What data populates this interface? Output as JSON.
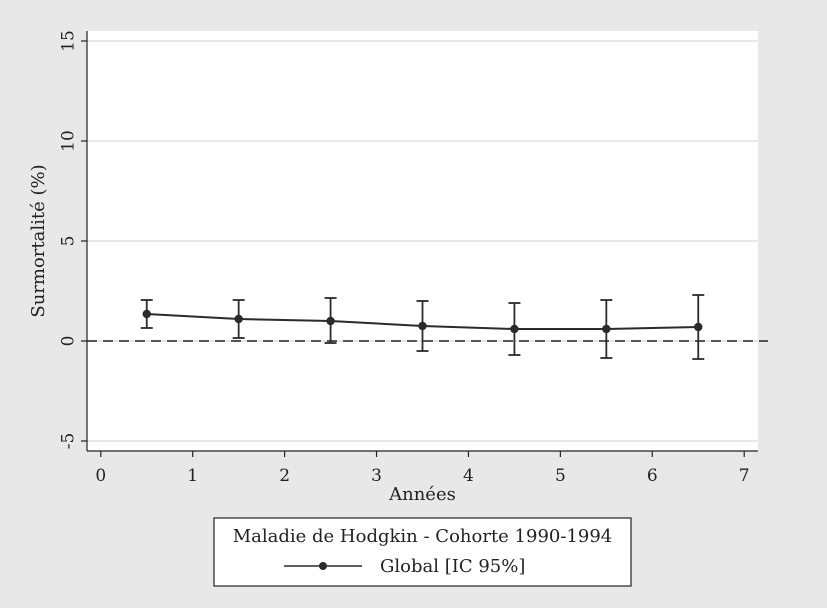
{
  "chart_data": {
    "type": "line",
    "title": "",
    "xlabel": "Années",
    "ylabel": "Surmortalité (%)",
    "xlim": [
      -0.15,
      7.15
    ],
    "ylim": [
      -5.5,
      15.5
    ],
    "xticks": [
      0,
      1,
      2,
      3,
      4,
      5,
      6,
      7
    ],
    "yticks": [
      -5,
      0,
      5,
      10,
      15
    ],
    "grid": true,
    "reference_line": {
      "y": 0,
      "style": "dashed"
    },
    "series": [
      {
        "name": "Global [IC 95%]",
        "x": [
          0.5,
          1.5,
          2.5,
          3.5,
          4.5,
          5.5,
          6.5
        ],
        "y": [
          1.35,
          1.1,
          1.0,
          0.75,
          0.6,
          0.6,
          0.7
        ],
        "ci_low": [
          0.65,
          0.15,
          -0.1,
          -0.5,
          -0.7,
          -0.85,
          -0.9
        ],
        "ci_high": [
          2.05,
          2.05,
          2.15,
          2.0,
          1.9,
          2.05,
          2.3
        ]
      }
    ],
    "legend": {
      "placement": "bottom-center",
      "title": "Maladie de Hodgkin - Cohorte 1990-1994",
      "entries": [
        "Global [IC 95%]"
      ]
    },
    "colors": {
      "background": "#e8e8e8",
      "plot": "#ffffff",
      "series": "#2b2b2b",
      "grid": "#dcdcdc"
    }
  }
}
